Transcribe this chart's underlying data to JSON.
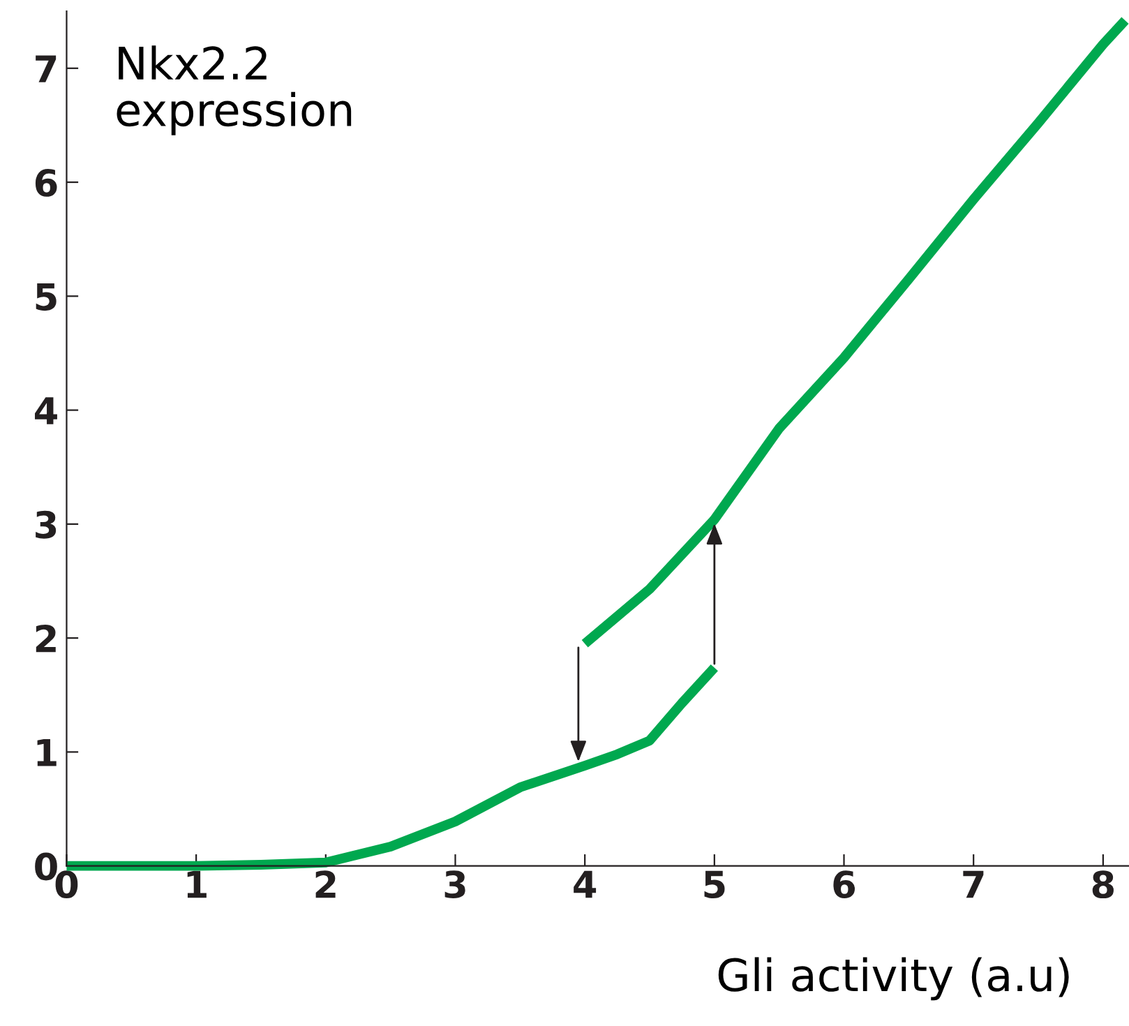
{
  "chart_data": {
    "type": "line",
    "ylabel": "Nkx2.2\nexpression",
    "xlabel": "Gli activity (a.u)",
    "xlim": [
      0,
      8.2
    ],
    "ylim": [
      0,
      7.5
    ],
    "xticks": [
      0,
      1,
      2,
      3,
      4,
      5,
      6,
      7,
      8
    ],
    "yticks": [
      0,
      1,
      2,
      3,
      4,
      5,
      6,
      7
    ],
    "grid": false,
    "legend": false,
    "marker": "none",
    "line_style": "solid",
    "series": [
      {
        "color": "#00a84f",
        "x": [
          0,
          1,
          1.5,
          2,
          2.5,
          3,
          3.5,
          4,
          4.25,
          4.5,
          4.75,
          5
        ],
        "values": [
          0,
          0,
          0.01,
          0.03,
          0.17,
          0.39,
          0.69,
          0.88,
          0.98,
          1.1,
          1.43,
          1.74
        ]
      },
      {
        "color": "#00a84f",
        "x": [
          4,
          4.5,
          5,
          5.5,
          6,
          6.5,
          7,
          7.5,
          8,
          8.17
        ],
        "values": [
          1.95,
          2.43,
          3.04,
          3.84,
          4.46,
          5.15,
          5.85,
          6.52,
          7.21,
          7.42
        ]
      }
    ]
  }
}
